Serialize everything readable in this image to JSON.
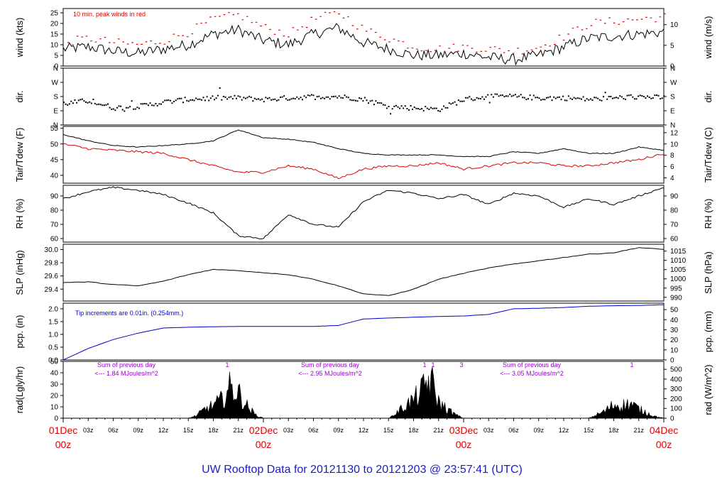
{
  "title": "UW Rooftop Data for 20121130  to  20121203 @ 23:57:41  (UTC)",
  "colors": {
    "black": "#000000",
    "red": "#dd0000",
    "blue": "#0000cc",
    "purple": "#9900cc",
    "title": "#1a1acc"
  },
  "chart_data": [
    {
      "id": "wind",
      "type": "line",
      "ylabel_left": "wind (kts)",
      "ylabel_right": "wind (m/s)",
      "ylim": [
        0,
        27
      ],
      "yticks": [
        0,
        5,
        10,
        15,
        20,
        25
      ],
      "right_ylim": [
        0,
        13.9
      ],
      "right_yticks": [
        0,
        5,
        10
      ],
      "annotation": "10 min. peak winds in red",
      "series": [
        {
          "name": "wind speed",
          "color": "black",
          "x": [
            0,
            3,
            6,
            9,
            12,
            15,
            18,
            21,
            24,
            27,
            30,
            33,
            36,
            39,
            42,
            45,
            48,
            51,
            54,
            57,
            60,
            63,
            66,
            69,
            72
          ],
          "values": [
            8,
            9,
            7,
            6,
            8,
            10,
            15,
            17,
            12,
            10,
            15,
            18,
            11,
            8,
            5,
            5,
            6,
            4,
            3,
            5,
            9,
            13,
            14,
            15,
            16
          ]
        },
        {
          "name": "10 min. peak winds",
          "color": "red",
          "x": [
            0,
            3,
            6,
            9,
            12,
            15,
            18,
            21,
            24,
            27,
            30,
            33,
            36,
            39,
            42,
            45,
            48,
            51,
            54,
            57,
            60,
            63,
            66,
            69,
            72
          ],
          "values": [
            11,
            13,
            11,
            10,
            12,
            16,
            22,
            24,
            18,
            15,
            22,
            25,
            17,
            13,
            9,
            8,
            9,
            8,
            7,
            9,
            14,
            20,
            21,
            22,
            23
          ]
        }
      ]
    },
    {
      "id": "dir",
      "type": "scatter",
      "ylabel_left": "dir.",
      "ylabel_right": "dir.",
      "ylim": [
        0,
        4
      ],
      "yticks": [
        0,
        1,
        2,
        3,
        4
      ],
      "ytick_labels": [
        "N",
        "E",
        "S",
        "W",
        "N"
      ],
      "right_yticks": [
        0,
        1,
        2,
        3,
        4
      ],
      "right_ytick_labels": [
        "N",
        "E",
        "S",
        "W",
        "N"
      ],
      "series": [
        {
          "name": "wind direction",
          "color": "black",
          "x": [
            0,
            3,
            6,
            9,
            12,
            15,
            18,
            21,
            24,
            27,
            30,
            33,
            36,
            39,
            42,
            45,
            48,
            51,
            54,
            57,
            60,
            63,
            66,
            69,
            72
          ],
          "values": [
            1.5,
            1.7,
            1.2,
            1.3,
            1.6,
            1.8,
            1.9,
            1.9,
            1.8,
            1.9,
            2.0,
            2.0,
            1.8,
            1.3,
            1.2,
            1.1,
            1.8,
            2.0,
            2.0,
            1.9,
            1.9,
            1.8,
            1.9,
            2.0,
            1.9
          ]
        }
      ]
    },
    {
      "id": "temp",
      "type": "line",
      "ylabel_left": "Tair/Tdew (F)",
      "ylabel_right": "Tair/Tdew (C)",
      "ylim": [
        37.5,
        55.6
      ],
      "yticks": [
        40,
        45,
        50,
        55
      ],
      "right_ylim": [
        3.06,
        13.11
      ],
      "right_yticks": [
        4,
        6,
        8,
        10,
        12
      ],
      "series": [
        {
          "name": "Tair",
          "color": "black",
          "x": [
            0,
            3,
            6,
            9,
            12,
            15,
            18,
            21,
            24,
            27,
            30,
            33,
            36,
            39,
            42,
            45,
            48,
            51,
            54,
            57,
            60,
            63,
            66,
            69,
            72
          ],
          "values": [
            53,
            51,
            49.5,
            49,
            49.5,
            50,
            51,
            54.5,
            52,
            51.5,
            50.5,
            48.5,
            47,
            46.5,
            46.5,
            46.5,
            46,
            46,
            47.5,
            47,
            48.5,
            47,
            47,
            49,
            48
          ]
        },
        {
          "name": "Tdew",
          "color": "red",
          "x": [
            0,
            3,
            6,
            9,
            12,
            15,
            18,
            21,
            24,
            27,
            30,
            33,
            36,
            39,
            42,
            45,
            48,
            51,
            54,
            57,
            60,
            63,
            66,
            69,
            72
          ],
          "values": [
            50,
            48.5,
            48,
            47.5,
            47,
            45,
            43,
            41,
            41,
            43,
            42,
            39,
            42,
            43,
            43,
            44,
            42,
            43,
            44,
            44,
            43,
            43,
            44,
            45,
            47
          ]
        }
      ]
    },
    {
      "id": "rh",
      "type": "line",
      "ylabel_left": "RH (%)",
      "ylabel_right": "RH (%)",
      "ylim": [
        57.5,
        97.5
      ],
      "yticks": [
        60,
        70,
        80,
        90
      ],
      "series": [
        {
          "name": "RH",
          "color": "black",
          "x": [
            0,
            3,
            6,
            9,
            12,
            15,
            18,
            21,
            24,
            27,
            30,
            33,
            36,
            39,
            42,
            45,
            48,
            51,
            54,
            57,
            60,
            63,
            66,
            69,
            72
          ],
          "values": [
            88,
            93,
            96,
            94,
            91,
            85,
            78,
            62,
            60,
            77,
            70,
            68,
            86,
            94,
            92,
            88,
            91,
            84,
            92,
            90,
            82,
            88,
            84,
            90,
            96
          ]
        }
      ]
    },
    {
      "id": "slp",
      "type": "line",
      "ylabel_left": "SLP (inHg)",
      "ylabel_right": "SLP (hPa)",
      "ylim": [
        29.22,
        30.08
      ],
      "yticks": [
        29.4,
        29.6,
        29.8,
        30.0
      ],
      "ytick_labels": [
        "29.4",
        "29.6",
        "29.8",
        "30.0"
      ],
      "right_ylim": [
        988,
        1018.7
      ],
      "right_yticks": [
        990,
        995,
        1000,
        1005,
        1010,
        1015
      ],
      "series": [
        {
          "name": "SLP",
          "color": "black",
          "x": [
            0,
            3,
            6,
            9,
            12,
            15,
            18,
            21,
            24,
            27,
            30,
            33,
            36,
            39,
            42,
            45,
            48,
            51,
            54,
            57,
            60,
            63,
            66,
            69,
            72
          ],
          "values": [
            29.5,
            29.51,
            29.47,
            29.45,
            29.52,
            29.62,
            29.7,
            29.68,
            29.65,
            29.62,
            29.55,
            29.45,
            29.33,
            29.3,
            29.4,
            29.55,
            29.64,
            29.72,
            29.78,
            29.83,
            29.88,
            29.93,
            29.95,
            30.03,
            30.0
          ]
        }
      ]
    },
    {
      "id": "pcp",
      "type": "line",
      "ylabel_left": "pcp. (in)",
      "ylabel_right": "pcp. (mm)",
      "ylim": [
        0,
        2.22
      ],
      "yticks": [
        0,
        0.5,
        1,
        1.5,
        2
      ],
      "ytick_labels": [
        "0.0",
        "0.5",
        "1.0",
        "1.5",
        "2.0"
      ],
      "right_ylim": [
        0,
        56.4
      ],
      "right_yticks": [
        0,
        10,
        20,
        30,
        40,
        50
      ],
      "annotation": "Tip increments are 0.01in. (0.254mm.)",
      "series": [
        {
          "name": "accumulated precipitation",
          "color": "blue",
          "x": [
            0,
            3,
            6,
            9,
            12,
            15,
            18,
            21,
            24,
            27,
            30,
            33,
            36,
            39,
            42,
            45,
            48,
            51,
            54,
            57,
            60,
            63,
            66,
            69,
            72
          ],
          "values": [
            0.0,
            0.45,
            0.8,
            1.05,
            1.25,
            1.28,
            1.3,
            1.31,
            1.31,
            1.31,
            1.31,
            1.35,
            1.6,
            1.64,
            1.67,
            1.7,
            1.72,
            1.78,
            2.0,
            2.02,
            2.05,
            2.1,
            2.12,
            2.13,
            2.16
          ]
        }
      ]
    },
    {
      "id": "rad",
      "type": "area",
      "ylabel_left": "rad(Lgly/hr)",
      "ylabel_right": "rad (W/m^2)",
      "ylim": [
        0,
        50
      ],
      "yticks": [
        0,
        10,
        20,
        30,
        40,
        50
      ],
      "right_ylim": [
        0,
        581
      ],
      "right_yticks": [
        0,
        100,
        200,
        300,
        400,
        500
      ],
      "series": [
        {
          "name": "solar radiation",
          "color": "black",
          "x": [
            0,
            3,
            6,
            9,
            12,
            15,
            16,
            17,
            18,
            19,
            20,
            21,
            22,
            23,
            24,
            39,
            40,
            41,
            42,
            43,
            44,
            45,
            46,
            47,
            48,
            63,
            64,
            65,
            66,
            67,
            68,
            69,
            70,
            71,
            72
          ],
          "values": [
            0,
            0,
            0,
            0,
            0,
            0,
            3,
            10,
            14,
            20,
            34,
            28,
            14,
            4,
            0,
            0,
            6,
            14,
            20,
            30,
            44,
            18,
            10,
            4,
            0,
            0,
            4,
            8,
            15,
            14,
            16,
            10,
            6,
            2,
            0
          ]
        }
      ],
      "day_annotations": [
        {
          "line1": "Sum of previous day",
          "line2": "<--- 1.84 MJoules/m^2"
        },
        {
          "line1": "Sum of previous day",
          "line2": "<--- 2.95 MJoules/m^2"
        },
        {
          "line1": "Sum of previous day",
          "line2": "<--- 3.05 MJoules/m^2"
        }
      ],
      "markers": [
        "1",
        "1",
        "1",
        "3",
        "1"
      ]
    }
  ],
  "x_axis": {
    "range_hours": [
      0,
      72
    ],
    "minor_labels": [
      {
        "h": 3,
        "label": "03z"
      },
      {
        "h": 6,
        "label": "06z"
      },
      {
        "h": 9,
        "label": "09z"
      },
      {
        "h": 12,
        "label": "12z"
      },
      {
        "h": 15,
        "label": "15z"
      },
      {
        "h": 18,
        "label": "18z"
      },
      {
        "h": 21,
        "label": "21z"
      },
      {
        "h": 27,
        "label": "03z"
      },
      {
        "h": 30,
        "label": "06z"
      },
      {
        "h": 33,
        "label": "09z"
      },
      {
        "h": 36,
        "label": "12z"
      },
      {
        "h": 39,
        "label": "15z"
      },
      {
        "h": 42,
        "label": "18z"
      },
      {
        "h": 45,
        "label": "21z"
      },
      {
        "h": 51,
        "label": "03z"
      },
      {
        "h": 54,
        "label": "06z"
      },
      {
        "h": 57,
        "label": "09z"
      },
      {
        "h": 60,
        "label": "12z"
      },
      {
        "h": 63,
        "label": "15z"
      },
      {
        "h": 66,
        "label": "18z"
      },
      {
        "h": 69,
        "label": "21z"
      }
    ],
    "day_labels": [
      {
        "h": 0,
        "day": "01Dec",
        "time": "00z"
      },
      {
        "h": 24,
        "day": "02Dec",
        "time": "00z"
      },
      {
        "h": 48,
        "day": "03Dec",
        "time": "00z"
      },
      {
        "h": 72,
        "day": "04Dec",
        "time": "00z"
      }
    ]
  }
}
